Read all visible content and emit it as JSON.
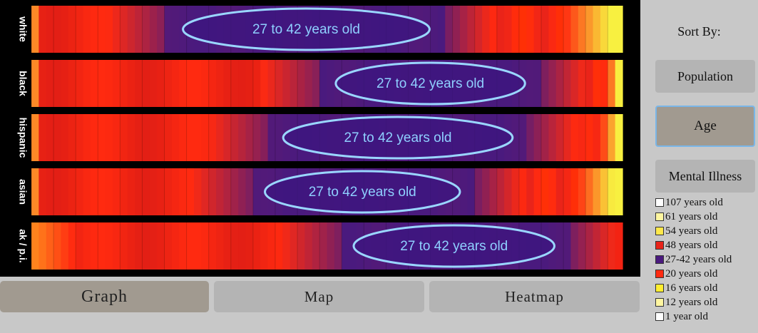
{
  "chart_data": {
    "type": "heatmap",
    "title": "",
    "xlabel": "",
    "ylabel": "",
    "rows": [
      {
        "label": "white",
        "highlight": "27 to 42 years old",
        "highlight_span": [
          0.25,
          0.68
        ]
      },
      {
        "label": "black",
        "highlight": "27 to 42 years old",
        "highlight_span": [
          0.51,
          0.84
        ]
      },
      {
        "label": "hispanic",
        "highlight": "27 to 42 years old",
        "highlight_span": [
          0.42,
          0.82
        ]
      },
      {
        "label": "asian",
        "highlight": "27 to 42 years old",
        "highlight_span": [
          0.39,
          0.73
        ]
      },
      {
        "label": "ak / p.i.",
        "highlight": "27 to 42 years old",
        "highlight_span": [
          0.54,
          0.89
        ]
      }
    ],
    "colors": {
      "purple": "#4a1a7e",
      "red": "#ff2a10",
      "yellow": "#f8f040",
      "orange": "#ff8c1e",
      "highlight_stroke": "#9ad6ff",
      "highlight_fill": "#3c1680",
      "highlight_text": "#8fd0ff"
    }
  },
  "tabs": [
    {
      "label": "Graph",
      "active": true
    },
    {
      "label": "Map",
      "active": false
    },
    {
      "label": "Heatmap",
      "active": false
    }
  ],
  "sidebar": {
    "sort_title": "Sort By:",
    "buttons": [
      {
        "label": "Population",
        "selected": false
      },
      {
        "label": "Age",
        "selected": true
      },
      {
        "label": "Mental Illness",
        "selected": false
      }
    ],
    "legend": [
      {
        "label": "107 years old",
        "color": "#ffffff"
      },
      {
        "label": "61 years old",
        "color": "#fff6a0"
      },
      {
        "label": "54 years old",
        "color": "#ffe84a"
      },
      {
        "label": "48 years old",
        "color": "#e8241a"
      },
      {
        "label": "27-42 years old",
        "color": "#4a1a7e"
      },
      {
        "label": "20 years old",
        "color": "#ff2a10"
      },
      {
        "label": "16 years old",
        "color": "#ffee30"
      },
      {
        "label": "12 years old",
        "color": "#fff6a0"
      },
      {
        "label": "1 year old",
        "color": "#ffffff"
      }
    ]
  }
}
